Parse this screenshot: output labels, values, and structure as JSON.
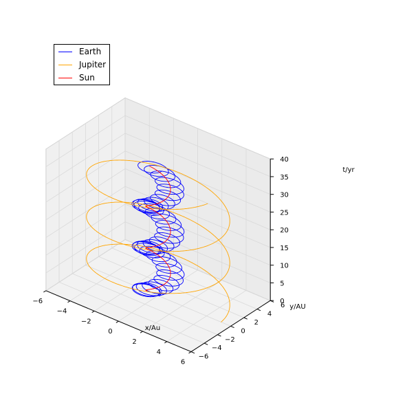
{
  "chart_data": {
    "type": "line",
    "projection": "3d",
    "title": "",
    "xlabel": "x/Au",
    "ylabel": "y/AU",
    "zlabel": "t/yr",
    "xlim": [
      -6,
      6
    ],
    "ylim": [
      -6,
      6
    ],
    "zlim": [
      0,
      40
    ],
    "xticks": [
      "−6",
      "−4",
      "−2",
      "0",
      "2",
      "4",
      "6"
    ],
    "yticks": [
      "−6",
      "−4",
      "−2",
      "0",
      "2",
      "4",
      "6"
    ],
    "zticks": [
      "0",
      "5",
      "10",
      "15",
      "20",
      "25",
      "30",
      "35",
      "40"
    ],
    "grid": true,
    "legend_position": "upper-left",
    "series": [
      {
        "name": "Earth",
        "color": "#0000ff",
        "orbit_radius_au": 1.0,
        "period_yr": 1.0,
        "t_range": [
          0,
          35
        ],
        "wobble_au": 0.9,
        "wobble_period_yr": 11.86
      },
      {
        "name": "Jupiter",
        "color": "#ffa500",
        "orbit_radius_au": 5.2,
        "period_yr": 11.86,
        "t_range": [
          0,
          35
        ]
      },
      {
        "name": "Sun",
        "color": "#ff0000",
        "orbit_radius_au": 0.0,
        "t_range": [
          0,
          35
        ],
        "wobble_au": 0.9,
        "wobble_period_yr": 11.86
      }
    ]
  }
}
